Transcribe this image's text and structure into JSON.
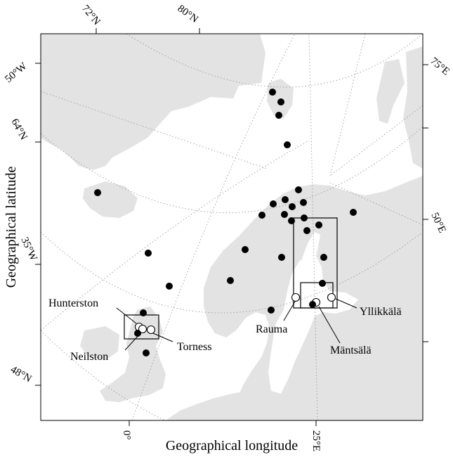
{
  "axes": {
    "xlabel": "Geographical longitude",
    "ylabel": "Geographical latitude"
  },
  "tick_labels": {
    "lat_72": "72°N",
    "lat_80": "80°N",
    "lon_50w": "50°W",
    "lon_75e": "75°E",
    "lat_64": "64°N",
    "lon_35w": "35°W",
    "lon_50e": "50°E",
    "lat_48": "48°N",
    "lon_0": "0°",
    "lon_25e": "25°E"
  },
  "site_labels": {
    "hunterston": "Hunterston",
    "neilston": "Neilston",
    "torness": "Torness",
    "rauma": "Rauma",
    "mantsala": "Mäntsälä",
    "yllikkala": "Yllikkälä"
  },
  "colors": {
    "land": "#e3e3e3",
    "sea": "#ffffff",
    "graticule": "#9a9a9a",
    "marker": "#000000"
  }
}
